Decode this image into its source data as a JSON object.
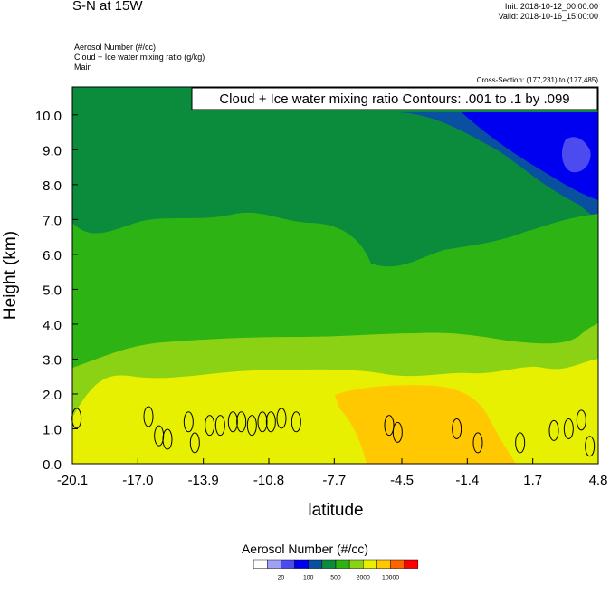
{
  "header": {
    "title": "S-N at 15W",
    "init": "Init: 2018-10-12_00:00:00",
    "valid": "Valid: 2018-10-16_15:00:00",
    "fields": [
      "Aerosol Number   (#/cc)",
      "Cloud + Ice water mixing ratio   (g/kg)",
      "Main"
    ],
    "cross_section": "Cross-Section: (177,231) to (177,485)"
  },
  "chart_data": {
    "type": "heatmap",
    "title": "S-N at 15W",
    "xlabel": "latitude",
    "ylabel": "Height (km)",
    "xlim": [
      -20.1,
      4.8
    ],
    "ylim": [
      0.0,
      10.8
    ],
    "xticks": [
      "-20.1",
      "-17.0",
      "-13.9",
      "-10.8",
      "-7.7",
      "-4.5",
      "-1.4",
      "1.7",
      "4.8"
    ],
    "yticks": [
      "0.0",
      "1.0",
      "2.0",
      "3.0",
      "4.0",
      "5.0",
      "6.0",
      "7.0",
      "8.0",
      "9.0",
      "10.0"
    ],
    "contour_label": "Cloud + Ice water mixing ratio Contours: .001 to .1 by .099",
    "contours": [
      {
        "lat": -19.9,
        "height": 1.3
      },
      {
        "lat": -16.5,
        "height": 1.35
      },
      {
        "lat": -16.0,
        "height": 0.8
      },
      {
        "lat": -15.6,
        "height": 0.7
      },
      {
        "lat": -14.6,
        "height": 1.2
      },
      {
        "lat": -14.3,
        "height": 0.6
      },
      {
        "lat": -13.6,
        "height": 1.1
      },
      {
        "lat": -13.1,
        "height": 1.1
      },
      {
        "lat": -12.5,
        "height": 1.2
      },
      {
        "lat": -12.1,
        "height": 1.2
      },
      {
        "lat": -11.6,
        "height": 1.1
      },
      {
        "lat": -11.1,
        "height": 1.2
      },
      {
        "lat": -10.7,
        "height": 1.2
      },
      {
        "lat": -10.2,
        "height": 1.3
      },
      {
        "lat": -9.5,
        "height": 1.2
      },
      {
        "lat": -5.1,
        "height": 1.1
      },
      {
        "lat": -4.7,
        "height": 0.9
      },
      {
        "lat": -1.9,
        "height": 1.0
      },
      {
        "lat": -0.9,
        "height": 0.6
      },
      {
        "lat": 1.1,
        "height": 0.6
      },
      {
        "lat": 2.7,
        "height": 0.95
      },
      {
        "lat": 3.4,
        "height": 1.0
      },
      {
        "lat": 4.0,
        "height": 1.25
      },
      {
        "lat": 4.4,
        "height": 0.5
      }
    ],
    "colorbar": {
      "title": "Aerosol Number  (#/cc)",
      "labels": [
        "20",
        "100",
        "500",
        "2000",
        "10000"
      ],
      "colors": [
        "#ffffff",
        "#a0a0f5",
        "#4b4bf0",
        "#0000f0",
        "#0a50a0",
        "#0a8c3c",
        "#2db414",
        "#8cd214",
        "#e6f000",
        "#ffc800",
        "#ff6400",
        "#ff0000"
      ]
    },
    "regions": [
      {
        "name": "upper-top",
        "color": "#0a8c3c"
      },
      {
        "name": "upper-dark",
        "color": "#0a50a0"
      },
      {
        "name": "upper-blue",
        "color": "#0000f0"
      },
      {
        "name": "upper-lav",
        "color": "#4b4bf0"
      },
      {
        "name": "mid",
        "color": "#2db414"
      },
      {
        "name": "lower",
        "color": "#8cd214"
      },
      {
        "name": "bottom",
        "color": "#e6f000"
      },
      {
        "name": "orange",
        "color": "#ffc800"
      }
    ]
  }
}
